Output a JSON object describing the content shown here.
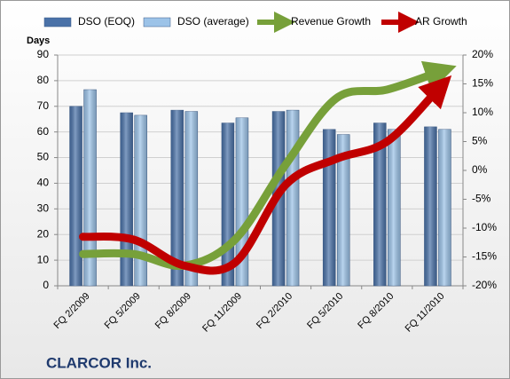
{
  "chart_data": {
    "type": "bar-line",
    "title": "CLARCOR Inc.",
    "y_axis_label": "Days",
    "categories": [
      "FQ 2/2009",
      "FQ 5/2009",
      "FQ 8/2009",
      "FQ 11/2009",
      "FQ 2/2010",
      "FQ 5/2010",
      "FQ 8/2010",
      "FQ 11/2010"
    ],
    "series": [
      {
        "name": "DSO (EOQ)",
        "type": "bar",
        "color": "#4a72a8",
        "values": [
          70,
          67.5,
          68.5,
          63.5,
          68,
          61,
          63.5,
          62
        ]
      },
      {
        "name": "DSO (average)",
        "type": "bar",
        "color": "#9cc3e8",
        "values": [
          76.5,
          66.5,
          68,
          65.5,
          68.5,
          59,
          61,
          61
        ]
      },
      {
        "name": "Revenue Growth",
        "type": "line",
        "axis": "y2",
        "color": "#77a03a",
        "values": [
          -14.5,
          -14.5,
          -16.5,
          -12,
          1,
          12.5,
          14,
          17
        ]
      },
      {
        "name": "AR Growth",
        "type": "line",
        "axis": "y2",
        "color": "#c00000",
        "values": [
          -11.5,
          -12,
          -16.5,
          -16,
          -2.5,
          2,
          5,
          14
        ]
      }
    ],
    "ylim": [
      0,
      90
    ],
    "yticks": [
      0,
      10,
      20,
      30,
      40,
      50,
      60,
      70,
      80,
      90
    ],
    "y2lim": [
      -20,
      20
    ],
    "y2ticks": [
      {
        "value": -20,
        "label": "-20%"
      },
      {
        "value": -15,
        "label": "-15%"
      },
      {
        "value": -10,
        "label": "-10%"
      },
      {
        "value": -5,
        "label": "-5%"
      },
      {
        "value": 0,
        "label": "0%"
      },
      {
        "value": 5,
        "label": "5%"
      },
      {
        "value": 10,
        "label": "10%"
      },
      {
        "value": 15,
        "label": "15%"
      },
      {
        "value": 20,
        "label": "20%"
      }
    ],
    "grid": true
  }
}
